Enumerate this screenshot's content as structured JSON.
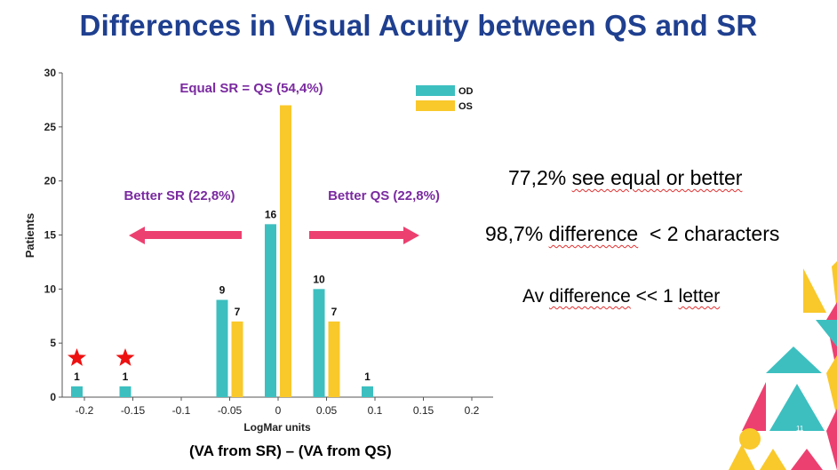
{
  "title": "Differences in Visual Acuity between QS and SR",
  "chart_data": {
    "type": "bar",
    "ylabel": "Patients",
    "xlabel": "LogMar units",
    "ylim": [
      0,
      30
    ],
    "yticks": [
      0,
      5,
      10,
      15,
      20,
      25,
      30
    ],
    "categories": [
      "-0.2",
      "-0.15",
      "-0.1",
      "-0.05",
      "0",
      "0.05",
      "0.1",
      "0.15",
      "0.2"
    ],
    "series": [
      {
        "name": "OD",
        "color": "#3dbfc0",
        "values": [
          1,
          1,
          0,
          9,
          16,
          10,
          1,
          0,
          0
        ]
      },
      {
        "name": "OS",
        "color": "#f9c82b",
        "values": [
          0,
          0,
          0,
          7,
          27,
          7,
          0,
          0,
          0
        ]
      }
    ],
    "data_labels": [
      {
        "category": "-0.2",
        "series": "OD",
        "text": "1"
      },
      {
        "category": "-0.15",
        "series": "OD",
        "text": "1"
      },
      {
        "category": "-0.05",
        "series": "OD",
        "text": "9"
      },
      {
        "category": "-0.05",
        "series": "OS",
        "text": "7"
      },
      {
        "category": "0",
        "series": "OD",
        "text": "16"
      },
      {
        "category": "0.05",
        "series": "OD",
        "text": "10"
      },
      {
        "category": "0.05",
        "series": "OS",
        "text": "7"
      },
      {
        "category": "0.1",
        "series": "OD",
        "text": "1"
      }
    ],
    "legend": [
      "OD",
      "OS"
    ],
    "legend_position": "top-right",
    "annotations": {
      "equal": "Equal SR = QS (54,4%)",
      "better_sr": "Better SR (22,8%)",
      "better_qs": "Better QS (22,8%)"
    },
    "annotation_color": "#7a2aa0",
    "arrow_color": "#ec4070",
    "star_color": "#ee1111",
    "starred_categories": [
      "-0.2",
      "-0.15"
    ]
  },
  "stats": {
    "line1_a": "77,2% ",
    "line1_b": "see equal or better",
    "line2_a": "98,7% ",
    "line2_b": "difference",
    "line2_c": "  < 2 characters",
    "line3_a": "Av ",
    "line3_b": "difference",
    "line3_c": " << 1 ",
    "line3_d": "letter"
  },
  "footer": "(VA from SR) – (VA from QS)",
  "slide_number": "11",
  "decor_colors": {
    "teal": "#3dbfc0",
    "pink": "#ec4070",
    "yellow": "#f9c82b"
  }
}
